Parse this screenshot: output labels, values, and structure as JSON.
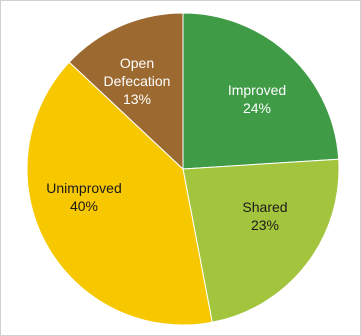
{
  "chart_data": {
    "type": "pie",
    "title": "",
    "slices": [
      {
        "name": "Improved",
        "value": 24,
        "pct_label": "24%",
        "color": "#3f9b46",
        "label_color": "light"
      },
      {
        "name": "Shared",
        "value": 23,
        "pct_label": "23%",
        "color": "#a3c53e",
        "label_color": "dark"
      },
      {
        "name": "Unimproved",
        "value": 40,
        "pct_label": "40%",
        "color": "#f7c800",
        "label_color": "dark"
      },
      {
        "name": "Open Defecation",
        "value": 13,
        "pct_label": "13%",
        "color": "#9c6a30",
        "label_color": "light"
      }
    ],
    "legend": "none"
  }
}
